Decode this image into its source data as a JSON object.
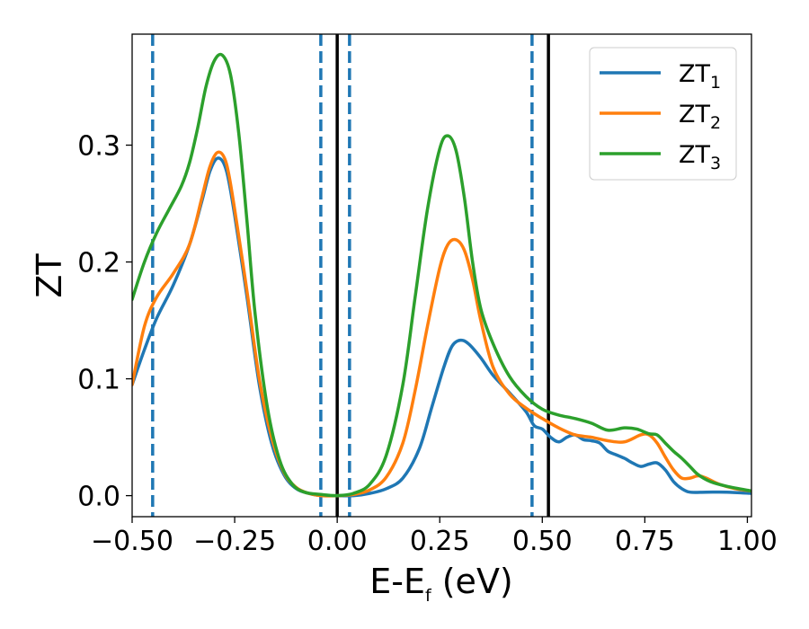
{
  "chart_data": {
    "type": "line",
    "xlabel": "E-E",
    "xlabel_sub": "f",
    "xlabel_unit": " (eV)",
    "ylabel": "ZT",
    "xlim": [
      -0.5,
      1.01
    ],
    "ylim": [
      -0.018,
      0.395
    ],
    "xticks": [
      -0.5,
      -0.25,
      0.0,
      0.25,
      0.5,
      0.75,
      1.0
    ],
    "xtick_labels": [
      "−0.50",
      "−0.25",
      "0.00",
      "0.25",
      "0.50",
      "0.75",
      "1.00"
    ],
    "yticks": [
      0.0,
      0.1,
      0.2,
      0.3
    ],
    "ytick_labels": [
      "0.0",
      "0.1",
      "0.2",
      "0.3"
    ],
    "grid": false,
    "legend_position": "top-right",
    "vlines": [
      {
        "x": -0.45,
        "style": "dashed",
        "color": "#1f77b4"
      },
      {
        "x": -0.04,
        "style": "dashed",
        "color": "#1f77b4"
      },
      {
        "x": 0.03,
        "style": "dashed",
        "color": "#1f77b4"
      },
      {
        "x": 0.475,
        "style": "dashed",
        "color": "#1f77b4"
      },
      {
        "x": 0.0,
        "style": "solid",
        "color": "#000000"
      },
      {
        "x": 0.515,
        "style": "solid",
        "color": "#000000"
      }
    ],
    "series": [
      {
        "name": "ZT",
        "sub": "1",
        "color": "#1f77b4",
        "points": [
          [
            -0.5,
            0.095
          ],
          [
            -0.47,
            0.125
          ],
          [
            -0.44,
            0.152
          ],
          [
            -0.4,
            0.18
          ],
          [
            -0.36,
            0.215
          ],
          [
            -0.33,
            0.252
          ],
          [
            -0.31,
            0.278
          ],
          [
            -0.29,
            0.289
          ],
          [
            -0.27,
            0.278
          ],
          [
            -0.25,
            0.24
          ],
          [
            -0.22,
            0.17
          ],
          [
            -0.19,
            0.095
          ],
          [
            -0.16,
            0.045
          ],
          [
            -0.13,
            0.018
          ],
          [
            -0.1,
            0.006
          ],
          [
            -0.07,
            0.002
          ],
          [
            -0.04,
            0.0
          ],
          [
            0.0,
            0.0
          ],
          [
            0.04,
            0.0
          ],
          [
            0.08,
            0.002
          ],
          [
            0.12,
            0.006
          ],
          [
            0.16,
            0.015
          ],
          [
            0.2,
            0.04
          ],
          [
            0.23,
            0.075
          ],
          [
            0.26,
            0.11
          ],
          [
            0.28,
            0.128
          ],
          [
            0.3,
            0.133
          ],
          [
            0.32,
            0.13
          ],
          [
            0.35,
            0.118
          ],
          [
            0.38,
            0.103
          ],
          [
            0.42,
            0.088
          ],
          [
            0.46,
            0.072
          ],
          [
            0.48,
            0.06
          ],
          [
            0.5,
            0.057
          ],
          [
            0.52,
            0.05
          ],
          [
            0.54,
            0.046
          ],
          [
            0.56,
            0.05
          ],
          [
            0.58,
            0.052
          ],
          [
            0.6,
            0.048
          ],
          [
            0.62,
            0.047
          ],
          [
            0.64,
            0.045
          ],
          [
            0.66,
            0.038
          ],
          [
            0.68,
            0.035
          ],
          [
            0.7,
            0.032
          ],
          [
            0.72,
            0.028
          ],
          [
            0.74,
            0.025
          ],
          [
            0.76,
            0.027
          ],
          [
            0.78,
            0.028
          ],
          [
            0.8,
            0.022
          ],
          [
            0.82,
            0.012
          ],
          [
            0.84,
            0.006
          ],
          [
            0.86,
            0.003
          ],
          [
            0.9,
            0.003
          ],
          [
            0.95,
            0.003
          ],
          [
            1.01,
            0.002
          ]
        ]
      },
      {
        "name": "ZT",
        "sub": "2",
        "color": "#ff7f0e",
        "points": [
          [
            -0.5,
            0.095
          ],
          [
            -0.47,
            0.145
          ],
          [
            -0.44,
            0.17
          ],
          [
            -0.4,
            0.19
          ],
          [
            -0.36,
            0.215
          ],
          [
            -0.33,
            0.255
          ],
          [
            -0.31,
            0.282
          ],
          [
            -0.29,
            0.294
          ],
          [
            -0.27,
            0.284
          ],
          [
            -0.25,
            0.245
          ],
          [
            -0.22,
            0.175
          ],
          [
            -0.19,
            0.1
          ],
          [
            -0.16,
            0.05
          ],
          [
            -0.13,
            0.02
          ],
          [
            -0.1,
            0.007
          ],
          [
            -0.07,
            0.002
          ],
          [
            -0.04,
            0.0
          ],
          [
            0.0,
            0.0
          ],
          [
            0.04,
            0.001
          ],
          [
            0.08,
            0.005
          ],
          [
            0.12,
            0.016
          ],
          [
            0.16,
            0.045
          ],
          [
            0.19,
            0.09
          ],
          [
            0.22,
            0.145
          ],
          [
            0.25,
            0.195
          ],
          [
            0.27,
            0.215
          ],
          [
            0.29,
            0.219
          ],
          [
            0.31,
            0.21
          ],
          [
            0.33,
            0.185
          ],
          [
            0.35,
            0.15
          ],
          [
            0.38,
            0.11
          ],
          [
            0.42,
            0.087
          ],
          [
            0.46,
            0.075
          ],
          [
            0.5,
            0.066
          ],
          [
            0.54,
            0.058
          ],
          [
            0.58,
            0.052
          ],
          [
            0.62,
            0.05
          ],
          [
            0.66,
            0.047
          ],
          [
            0.7,
            0.046
          ],
          [
            0.74,
            0.052
          ],
          [
            0.76,
            0.052
          ],
          [
            0.78,
            0.045
          ],
          [
            0.8,
            0.033
          ],
          [
            0.82,
            0.022
          ],
          [
            0.84,
            0.015
          ],
          [
            0.86,
            0.015
          ],
          [
            0.88,
            0.017
          ],
          [
            0.9,
            0.015
          ],
          [
            0.93,
            0.01
          ],
          [
            0.97,
            0.006
          ],
          [
            1.01,
            0.004
          ]
        ]
      },
      {
        "name": "ZT",
        "sub": "3",
        "color": "#2ca02c",
        "points": [
          [
            -0.5,
            0.168
          ],
          [
            -0.47,
            0.2
          ],
          [
            -0.44,
            0.225
          ],
          [
            -0.41,
            0.245
          ],
          [
            -0.38,
            0.265
          ],
          [
            -0.36,
            0.285
          ],
          [
            -0.34,
            0.315
          ],
          [
            -0.32,
            0.35
          ],
          [
            -0.3,
            0.372
          ],
          [
            -0.28,
            0.377
          ],
          [
            -0.26,
            0.36
          ],
          [
            -0.24,
            0.31
          ],
          [
            -0.22,
            0.235
          ],
          [
            -0.2,
            0.155
          ],
          [
            -0.17,
            0.075
          ],
          [
            -0.14,
            0.03
          ],
          [
            -0.11,
            0.01
          ],
          [
            -0.08,
            0.003
          ],
          [
            -0.04,
            0.001
          ],
          [
            0.0,
            0.0
          ],
          [
            0.04,
            0.002
          ],
          [
            0.08,
            0.01
          ],
          [
            0.12,
            0.035
          ],
          [
            0.16,
            0.095
          ],
          [
            0.19,
            0.17
          ],
          [
            0.22,
            0.245
          ],
          [
            0.25,
            0.297
          ],
          [
            0.27,
            0.308
          ],
          [
            0.29,
            0.295
          ],
          [
            0.31,
            0.255
          ],
          [
            0.33,
            0.2
          ],
          [
            0.35,
            0.16
          ],
          [
            0.38,
            0.13
          ],
          [
            0.42,
            0.102
          ],
          [
            0.46,
            0.085
          ],
          [
            0.5,
            0.074
          ],
          [
            0.54,
            0.069
          ],
          [
            0.58,
            0.066
          ],
          [
            0.62,
            0.062
          ],
          [
            0.66,
            0.056
          ],
          [
            0.7,
            0.058
          ],
          [
            0.73,
            0.057
          ],
          [
            0.76,
            0.053
          ],
          [
            0.78,
            0.052
          ],
          [
            0.8,
            0.045
          ],
          [
            0.82,
            0.038
          ],
          [
            0.84,
            0.032
          ],
          [
            0.86,
            0.025
          ],
          [
            0.88,
            0.018
          ],
          [
            0.91,
            0.012
          ],
          [
            0.95,
            0.008
          ],
          [
            1.01,
            0.004
          ]
        ]
      }
    ]
  }
}
